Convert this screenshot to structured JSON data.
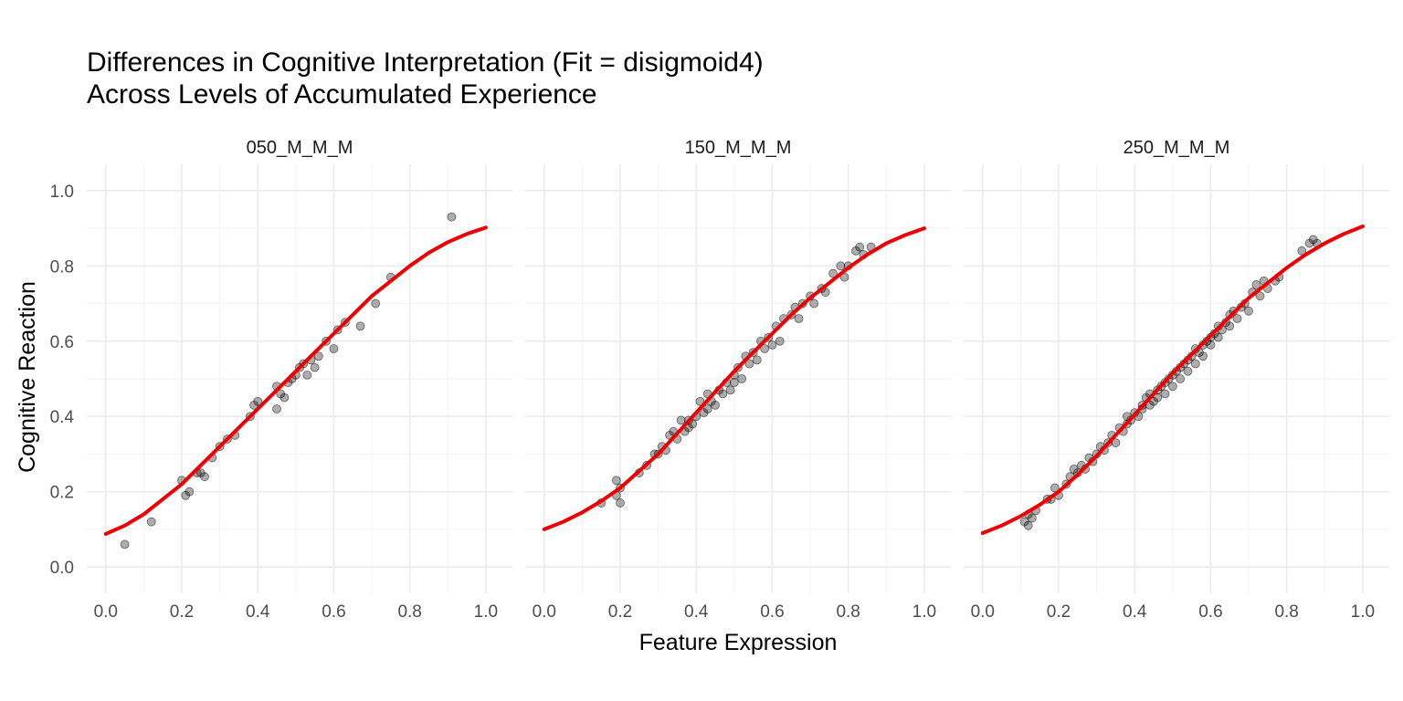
{
  "chart_data": {
    "type": "scatter",
    "title_line1": "Differences in Cognitive Interpretation (Fit = disigmoid4)",
    "title_line2": "Across Levels of Accumulated Experience",
    "xlabel": "Feature Expression",
    "ylabel": "Cognitive Reaction",
    "xlim": [
      -0.05,
      1.07
    ],
    "ylim": [
      -0.07,
      1.07
    ],
    "x_ticks": [
      0.0,
      0.2,
      0.4,
      0.6,
      0.8,
      1.0
    ],
    "y_ticks": [
      0.0,
      0.2,
      0.4,
      0.6,
      0.8,
      1.0
    ],
    "x_tick_labels": [
      "0.0",
      "0.2",
      "0.4",
      "0.6",
      "0.8",
      "1.0"
    ],
    "y_tick_labels": [
      "0.0",
      "0.2",
      "0.4",
      "0.6",
      "0.8",
      "1.0"
    ],
    "grid": true,
    "point_color": "#000000",
    "fit_color": "#ee0000",
    "facets": [
      {
        "label": "050_M_M_M",
        "points": [
          [
            0.05,
            0.06
          ],
          [
            0.12,
            0.12
          ],
          [
            0.2,
            0.23
          ],
          [
            0.21,
            0.19
          ],
          [
            0.22,
            0.2
          ],
          [
            0.24,
            0.25
          ],
          [
            0.25,
            0.25
          ],
          [
            0.26,
            0.24
          ],
          [
            0.28,
            0.29
          ],
          [
            0.3,
            0.32
          ],
          [
            0.32,
            0.34
          ],
          [
            0.34,
            0.35
          ],
          [
            0.38,
            0.4
          ],
          [
            0.39,
            0.43
          ],
          [
            0.4,
            0.44
          ],
          [
            0.45,
            0.42
          ],
          [
            0.45,
            0.48
          ],
          [
            0.46,
            0.46
          ],
          [
            0.47,
            0.45
          ],
          [
            0.48,
            0.49
          ],
          [
            0.49,
            0.5
          ],
          [
            0.5,
            0.51
          ],
          [
            0.51,
            0.53
          ],
          [
            0.52,
            0.54
          ],
          [
            0.53,
            0.51
          ],
          [
            0.54,
            0.55
          ],
          [
            0.55,
            0.53
          ],
          [
            0.56,
            0.56
          ],
          [
            0.58,
            0.6
          ],
          [
            0.6,
            0.58
          ],
          [
            0.61,
            0.63
          ],
          [
            0.63,
            0.65
          ],
          [
            0.67,
            0.64
          ],
          [
            0.71,
            0.7
          ],
          [
            0.75,
            0.77
          ],
          [
            0.91,
            0.93
          ]
        ],
        "fit": [
          [
            0.0,
            0.088
          ],
          [
            0.05,
            0.11
          ],
          [
            0.1,
            0.14
          ],
          [
            0.15,
            0.18
          ],
          [
            0.2,
            0.22
          ],
          [
            0.25,
            0.27
          ],
          [
            0.3,
            0.32
          ],
          [
            0.35,
            0.37
          ],
          [
            0.4,
            0.42
          ],
          [
            0.45,
            0.47
          ],
          [
            0.5,
            0.52
          ],
          [
            0.55,
            0.57
          ],
          [
            0.6,
            0.62
          ],
          [
            0.65,
            0.67
          ],
          [
            0.7,
            0.72
          ],
          [
            0.75,
            0.76
          ],
          [
            0.8,
            0.8
          ],
          [
            0.85,
            0.835
          ],
          [
            0.9,
            0.863
          ],
          [
            0.95,
            0.885
          ],
          [
            1.0,
            0.902
          ]
        ]
      },
      {
        "label": "150_M_M_M",
        "points": [
          [
            0.15,
            0.17
          ],
          [
            0.19,
            0.23
          ],
          [
            0.19,
            0.19
          ],
          [
            0.2,
            0.17
          ],
          [
            0.2,
            0.21
          ],
          [
            0.25,
            0.25
          ],
          [
            0.27,
            0.27
          ],
          [
            0.29,
            0.3
          ],
          [
            0.3,
            0.3
          ],
          [
            0.31,
            0.32
          ],
          [
            0.32,
            0.31
          ],
          [
            0.33,
            0.35
          ],
          [
            0.34,
            0.36
          ],
          [
            0.35,
            0.34
          ],
          [
            0.36,
            0.39
          ],
          [
            0.37,
            0.36
          ],
          [
            0.38,
            0.39
          ],
          [
            0.38,
            0.37
          ],
          [
            0.39,
            0.38
          ],
          [
            0.4,
            0.4
          ],
          [
            0.41,
            0.44
          ],
          [
            0.42,
            0.41
          ],
          [
            0.43,
            0.42
          ],
          [
            0.43,
            0.46
          ],
          [
            0.44,
            0.44
          ],
          [
            0.45,
            0.43
          ],
          [
            0.46,
            0.47
          ],
          [
            0.47,
            0.46
          ],
          [
            0.48,
            0.49
          ],
          [
            0.49,
            0.47
          ],
          [
            0.5,
            0.51
          ],
          [
            0.5,
            0.49
          ],
          [
            0.51,
            0.53
          ],
          [
            0.52,
            0.5
          ],
          [
            0.53,
            0.56
          ],
          [
            0.54,
            0.54
          ],
          [
            0.55,
            0.57
          ],
          [
            0.56,
            0.55
          ],
          [
            0.57,
            0.6
          ],
          [
            0.58,
            0.58
          ],
          [
            0.59,
            0.61
          ],
          [
            0.6,
            0.59
          ],
          [
            0.61,
            0.64
          ],
          [
            0.62,
            0.6
          ],
          [
            0.63,
            0.66
          ],
          [
            0.65,
            0.67
          ],
          [
            0.66,
            0.69
          ],
          [
            0.67,
            0.66
          ],
          [
            0.68,
            0.7
          ],
          [
            0.7,
            0.72
          ],
          [
            0.71,
            0.7
          ],
          [
            0.73,
            0.74
          ],
          [
            0.74,
            0.73
          ],
          [
            0.76,
            0.78
          ],
          [
            0.78,
            0.8
          ],
          [
            0.79,
            0.77
          ],
          [
            0.8,
            0.8
          ],
          [
            0.82,
            0.84
          ],
          [
            0.83,
            0.85
          ],
          [
            0.84,
            0.83
          ],
          [
            0.86,
            0.85
          ]
        ],
        "fit": [
          [
            0.0,
            0.1
          ],
          [
            0.05,
            0.12
          ],
          [
            0.1,
            0.145
          ],
          [
            0.15,
            0.175
          ],
          [
            0.2,
            0.21
          ],
          [
            0.25,
            0.255
          ],
          [
            0.3,
            0.3
          ],
          [
            0.35,
            0.355
          ],
          [
            0.4,
            0.41
          ],
          [
            0.45,
            0.465
          ],
          [
            0.5,
            0.52
          ],
          [
            0.55,
            0.57
          ],
          [
            0.6,
            0.62
          ],
          [
            0.65,
            0.67
          ],
          [
            0.7,
            0.715
          ],
          [
            0.75,
            0.755
          ],
          [
            0.8,
            0.795
          ],
          [
            0.85,
            0.83
          ],
          [
            0.9,
            0.86
          ],
          [
            0.95,
            0.882
          ],
          [
            1.0,
            0.9
          ]
        ]
      },
      {
        "label": "250_M_M_M",
        "points": [
          [
            0.11,
            0.12
          ],
          [
            0.12,
            0.11
          ],
          [
            0.12,
            0.14
          ],
          [
            0.13,
            0.13
          ],
          [
            0.14,
            0.15
          ],
          [
            0.17,
            0.18
          ],
          [
            0.18,
            0.18
          ],
          [
            0.19,
            0.21
          ],
          [
            0.2,
            0.19
          ],
          [
            0.22,
            0.22
          ],
          [
            0.23,
            0.24
          ],
          [
            0.24,
            0.26
          ],
          [
            0.25,
            0.25
          ],
          [
            0.26,
            0.27
          ],
          [
            0.27,
            0.26
          ],
          [
            0.28,
            0.29
          ],
          [
            0.29,
            0.28
          ],
          [
            0.3,
            0.3
          ],
          [
            0.31,
            0.32
          ],
          [
            0.32,
            0.31
          ],
          [
            0.33,
            0.33
          ],
          [
            0.34,
            0.35
          ],
          [
            0.35,
            0.33
          ],
          [
            0.36,
            0.37
          ],
          [
            0.37,
            0.36
          ],
          [
            0.38,
            0.38
          ],
          [
            0.38,
            0.4
          ],
          [
            0.39,
            0.39
          ],
          [
            0.4,
            0.41
          ],
          [
            0.41,
            0.4
          ],
          [
            0.42,
            0.43
          ],
          [
            0.42,
            0.42
          ],
          [
            0.43,
            0.45
          ],
          [
            0.44,
            0.43
          ],
          [
            0.44,
            0.46
          ],
          [
            0.45,
            0.44
          ],
          [
            0.46,
            0.47
          ],
          [
            0.46,
            0.45
          ],
          [
            0.47,
            0.48
          ],
          [
            0.48,
            0.46
          ],
          [
            0.48,
            0.49
          ],
          [
            0.49,
            0.5
          ],
          [
            0.5,
            0.48
          ],
          [
            0.5,
            0.51
          ],
          [
            0.51,
            0.52
          ],
          [
            0.52,
            0.5
          ],
          [
            0.52,
            0.53
          ],
          [
            0.53,
            0.54
          ],
          [
            0.54,
            0.52
          ],
          [
            0.54,
            0.55
          ],
          [
            0.55,
            0.56
          ],
          [
            0.56,
            0.54
          ],
          [
            0.56,
            0.58
          ],
          [
            0.57,
            0.57
          ],
          [
            0.58,
            0.59
          ],
          [
            0.58,
            0.56
          ],
          [
            0.59,
            0.6
          ],
          [
            0.6,
            0.61
          ],
          [
            0.6,
            0.59
          ],
          [
            0.61,
            0.62
          ],
          [
            0.62,
            0.64
          ],
          [
            0.62,
            0.61
          ],
          [
            0.63,
            0.63
          ],
          [
            0.64,
            0.65
          ],
          [
            0.65,
            0.64
          ],
          [
            0.65,
            0.67
          ],
          [
            0.66,
            0.68
          ],
          [
            0.67,
            0.66
          ],
          [
            0.68,
            0.69
          ],
          [
            0.69,
            0.7
          ],
          [
            0.7,
            0.68
          ],
          [
            0.71,
            0.73
          ],
          [
            0.72,
            0.75
          ],
          [
            0.73,
            0.72
          ],
          [
            0.74,
            0.76
          ],
          [
            0.75,
            0.74
          ],
          [
            0.77,
            0.76
          ],
          [
            0.78,
            0.77
          ],
          [
            0.84,
            0.84
          ],
          [
            0.86,
            0.86
          ],
          [
            0.87,
            0.87
          ],
          [
            0.88,
            0.86
          ]
        ],
        "fit": [
          [
            0.0,
            0.09
          ],
          [
            0.05,
            0.11
          ],
          [
            0.1,
            0.135
          ],
          [
            0.15,
            0.165
          ],
          [
            0.2,
            0.2
          ],
          [
            0.25,
            0.245
          ],
          [
            0.3,
            0.295
          ],
          [
            0.35,
            0.35
          ],
          [
            0.4,
            0.405
          ],
          [
            0.45,
            0.46
          ],
          [
            0.5,
            0.515
          ],
          [
            0.55,
            0.565
          ],
          [
            0.6,
            0.615
          ],
          [
            0.65,
            0.665
          ],
          [
            0.7,
            0.715
          ],
          [
            0.75,
            0.755
          ],
          [
            0.8,
            0.795
          ],
          [
            0.85,
            0.83
          ],
          [
            0.9,
            0.86
          ],
          [
            0.95,
            0.885
          ],
          [
            1.0,
            0.905
          ]
        ]
      }
    ]
  }
}
